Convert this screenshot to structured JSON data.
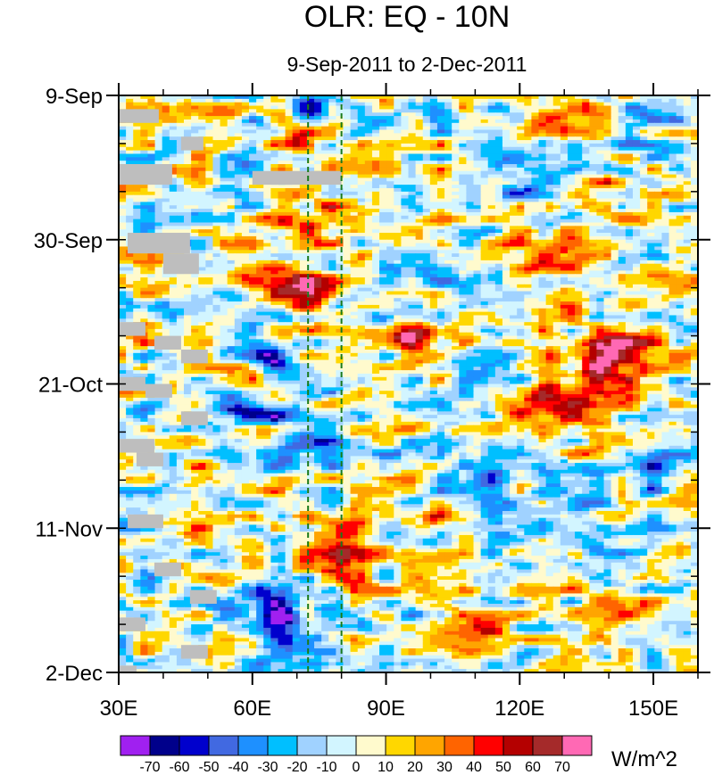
{
  "chart_data": {
    "type": "heatmap",
    "title": "OLR: EQ - 10N",
    "subtitle": "9-Sep-2011 to 2-Dec-2011",
    "x_axis": {
      "range": [
        30,
        160
      ],
      "ticks": [
        30,
        60,
        90,
        120,
        150
      ],
      "tick_labels": [
        "30E",
        "60E",
        "90E",
        "120E",
        "150E"
      ],
      "minor_step": 10
    },
    "y_axis": {
      "range_days": [
        0,
        84
      ],
      "ticks_days": [
        0,
        21,
        42,
        63,
        84
      ],
      "tick_labels": [
        "9-Sep",
        "30-Sep",
        "21-Oct",
        "11-Nov",
        "2-Dec"
      ],
      "minor_step_days": 7,
      "direction": "time increases downward"
    },
    "reference_lines_lon": [
      72.5,
      80
    ],
    "colorbar": {
      "unit": "W/m^2",
      "levels": [
        -70,
        -60,
        -50,
        -40,
        -30,
        -20,
        -10,
        0,
        10,
        20,
        30,
        40,
        50,
        60,
        70
      ],
      "level_labels": [
        "-70",
        "-60",
        "-50",
        "-40",
        "-30",
        "-20",
        "-10",
        "0",
        "10",
        "20",
        "30",
        "40",
        "50",
        "60",
        "70"
      ],
      "colors": [
        "#a020f0",
        "#00008b",
        "#0000cd",
        "#4169e1",
        "#1e90ff",
        "#00bfff",
        "#a0d2ff",
        "#d2f5ff",
        "#fffacd",
        "#ffd700",
        "#ffa500",
        "#ff6400",
        "#ff0000",
        "#b40000",
        "#a52a2a",
        "#ff69b4"
      ]
    },
    "missing_color": "#bebebe",
    "anomaly_features": [
      {
        "lon": 75,
        "day": 2,
        "value": -55,
        "lon_w": 5,
        "day_w": 2
      },
      {
        "lon": 70,
        "day": 7,
        "value": 35,
        "lon_w": 4,
        "day_w": 2
      },
      {
        "lon": 115,
        "day": 4,
        "value": -30,
        "lon_w": 7,
        "day_w": 3
      },
      {
        "lon": 130,
        "day": 2,
        "value": 40,
        "lon_w": 8,
        "day_w": 3
      },
      {
        "lon": 150,
        "day": 3,
        "value": -30,
        "lon_w": 7,
        "day_w": 3
      },
      {
        "lon": 120,
        "day": 13,
        "value": -35,
        "lon_w": 8,
        "day_w": 3
      },
      {
        "lon": 135,
        "day": 15,
        "value": 30,
        "lon_w": 8,
        "day_w": 3
      },
      {
        "lon": 55,
        "day": 12,
        "value": -25,
        "lon_w": 6,
        "day_w": 3
      },
      {
        "lon": 75,
        "day": 18,
        "value": 30,
        "lon_w": 10,
        "day_w": 4
      },
      {
        "lon": 62,
        "day": 25,
        "value": 30,
        "lon_w": 8,
        "day_w": 6
      },
      {
        "lon": 74,
        "day": 28,
        "value": 55,
        "lon_w": 6,
        "day_w": 3
      },
      {
        "lon": 100,
        "day": 25,
        "value": -30,
        "lon_w": 8,
        "day_w": 3
      },
      {
        "lon": 130,
        "day": 23,
        "value": 35,
        "lon_w": 9,
        "day_w": 3
      },
      {
        "lon": 95,
        "day": 35,
        "value": 55,
        "lon_w": 8,
        "day_w": 2
      },
      {
        "lon": 140,
        "day": 36,
        "value": 30,
        "lon_w": 8,
        "day_w": 3
      },
      {
        "lon": 140,
        "day": 39,
        "value": 55,
        "lon_w": 10,
        "day_w": 3
      },
      {
        "lon": 115,
        "day": 38,
        "value": -30,
        "lon_w": 7,
        "day_w": 3
      },
      {
        "lon": 63,
        "day": 38,
        "value": -50,
        "lon_w": 5,
        "day_w": 2
      },
      {
        "lon": 58,
        "day": 46,
        "value": -55,
        "lon_w": 10,
        "day_w": 2
      },
      {
        "lon": 72,
        "day": 51,
        "value": -55,
        "lon_w": 8,
        "day_w": 3
      },
      {
        "lon": 125,
        "day": 46,
        "value": 45,
        "lon_w": 12,
        "day_w": 4
      },
      {
        "lon": 110,
        "day": 57,
        "value": -35,
        "lon_w": 8,
        "day_w": 3
      },
      {
        "lon": 98,
        "day": 62,
        "value": 40,
        "lon_w": 6,
        "day_w": 2
      },
      {
        "lon": 80,
        "day": 66,
        "value": 50,
        "lon_w": 7,
        "day_w": 5
      },
      {
        "lon": 135,
        "day": 62,
        "value": -20,
        "lon_w": 10,
        "day_w": 4
      },
      {
        "lon": 65,
        "day": 76,
        "value": -60,
        "lon_w": 10,
        "day_w": 4
      },
      {
        "lon": 110,
        "day": 78,
        "value": 35,
        "lon_w": 10,
        "day_w": 3
      },
      {
        "lon": 140,
        "day": 74,
        "value": 30,
        "lon_w": 8,
        "day_w": 3
      },
      {
        "lon": 45,
        "day": 60,
        "value": 25,
        "lon_w": 8,
        "day_w": 6
      },
      {
        "lon": 150,
        "day": 55,
        "value": -25,
        "lon_w": 8,
        "day_w": 4
      }
    ]
  }
}
